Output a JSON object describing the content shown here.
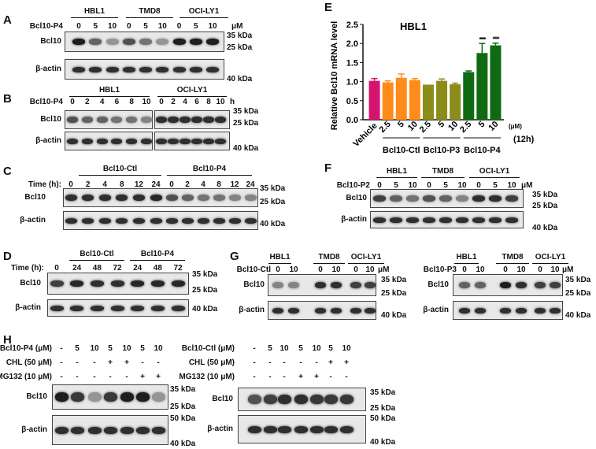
{
  "panels": {
    "A": {
      "label": "A",
      "groups": [
        "HBL1",
        "TMD8",
        "OCI-LY1"
      ],
      "unit": "μM",
      "treat": "Bcl10-P4",
      "lanes": [
        "0",
        "5",
        "10",
        "0",
        "5",
        "10",
        "0",
        "5",
        "10"
      ],
      "rows": [
        "Bcl10",
        "β-actin"
      ],
      "markers": [
        "35 kDa",
        "25 kDa",
        "40 kDa"
      ],
      "bcl10_intensity": [
        1,
        0.6,
        0.3,
        0.7,
        0.5,
        0.3,
        1,
        1,
        1
      ]
    },
    "B": {
      "label": "B",
      "groups": [
        "HBL1",
        "OCI-LY1"
      ],
      "unit": "h",
      "treat": "Bcl10-P4",
      "lanes": [
        "0",
        "2",
        "4",
        "6",
        "8",
        "10",
        "0",
        "2",
        "4",
        "6",
        "8",
        "10"
      ],
      "rows": [
        "Bcl10",
        "β-actin"
      ],
      "markers": [
        "35 kDa",
        "25 kDa",
        "40 kDa"
      ],
      "bcl10_intensity": [
        0.7,
        0.6,
        0.6,
        0.5,
        0.5,
        0.4,
        0.9,
        0.9,
        0.9,
        0.9,
        0.9,
        0.9
      ]
    },
    "C": {
      "label": "C",
      "groups": [
        "Bcl10-Ctl",
        "Bcl10-P4"
      ],
      "treat": "Time (h):",
      "lanes": [
        "0",
        "2",
        "4",
        "8",
        "12",
        "24",
        "0",
        "2",
        "4",
        "8",
        "12",
        "24"
      ],
      "rows": [
        "Bcl10",
        "β-actin"
      ],
      "markers": [
        "35 kDa",
        "25 kDa",
        "40 kDa"
      ],
      "bcl10_intensity": [
        0.9,
        0.9,
        0.9,
        0.9,
        0.9,
        0.95,
        0.7,
        0.6,
        0.5,
        0.5,
        0.4,
        0.4
      ]
    },
    "D": {
      "label": "D",
      "groups": [
        "Bcl10-Ctl",
        "Bcl10-P4"
      ],
      "treat": "Time (h):",
      "lanes": [
        "0",
        "24",
        "48",
        "72",
        "24",
        "48",
        "72"
      ],
      "rows": [
        "Bcl10",
        "β-actin"
      ],
      "markers": [
        "35 kDa",
        "25 kDa",
        "40 kDa"
      ],
      "bcl10_intensity": [
        0.8,
        0.95,
        0.9,
        0.9,
        0.95,
        0.95,
        0.95
      ]
    },
    "E": {
      "label": "E"
    },
    "F": {
      "label": "F",
      "groups": [
        "HBL1",
        "TMD8",
        "OCI-LY1"
      ],
      "unit": "μM",
      "treat": "Bcl10-P2",
      "lanes": [
        "0",
        "5",
        "10",
        "0",
        "5",
        "10",
        "0",
        "5",
        "10"
      ],
      "rows": [
        "Bcl10",
        "β-actin"
      ],
      "markers": [
        "35 kDa",
        "25 kDa",
        "40 kDa"
      ],
      "bcl10_intensity": [
        0.8,
        0.6,
        0.5,
        0.7,
        0.6,
        0.4,
        0.9,
        0.9,
        0.8
      ]
    },
    "G": {
      "label": "G",
      "left": {
        "groups": [
          "HBL1",
          "TMD8",
          "OCI-LY1"
        ],
        "unit": "μM",
        "treat": "Bcl10-Ctl",
        "lanes": [
          "0",
          "10",
          "0",
          "10",
          "0",
          "10"
        ],
        "rows": [
          "Bcl10",
          "β-actin"
        ],
        "markers": [
          "35 kDa",
          "25 kDa",
          "40 kDa"
        ],
        "bcl10_intensity": [
          0.4,
          0.4,
          0.9,
          0.9,
          0.8,
          0.8
        ]
      },
      "right": {
        "groups": [
          "HBL1",
          "TMD8",
          "OCI-LY1"
        ],
        "unit": "μM",
        "treat": "Bcl10-P3",
        "lanes": [
          "0",
          "10",
          "0",
          "10",
          "0",
          "10"
        ],
        "rows": [
          "Bcl10",
          "β-actin"
        ],
        "markers": [
          "35 kDa",
          "25 kDa",
          "40 kDa"
        ],
        "bcl10_intensity": [
          0.6,
          0.6,
          1,
          0.9,
          0.8,
          0.8
        ]
      }
    },
    "H": {
      "label": "H",
      "left": {
        "conditions": [
          {
            "name": "Bcl10-P4 (μM)",
            "values": [
              "-",
              "5",
              "10",
              "5",
              "10",
              "5",
              "10"
            ]
          },
          {
            "name": "CHL (50 μM)",
            "values": [
              "-",
              "-",
              "-",
              "+",
              "+",
              "-",
              "-"
            ]
          },
          {
            "name": "MG132 (10 μM)",
            "values": [
              "-",
              "-",
              "-",
              "-",
              "-",
              "+",
              "+"
            ]
          }
        ],
        "rows": [
          "Bcl10",
          "β-actin"
        ],
        "markers": [
          "35 kDa",
          "25 kDa",
          "50 kDa",
          "40 kDa"
        ],
        "bcl10_intensity": [
          1,
          0.85,
          0.3,
          0.85,
          1,
          1,
          0.3
        ]
      },
      "right": {
        "conditions": [
          {
            "name": "Bcl10-Ctl (μM)",
            "values": [
              "-",
              "5",
              "10",
              "5",
              "10",
              "5",
              "10"
            ]
          },
          {
            "name": "CHL (50 μM)",
            "values": [
              "-",
              "-",
              "-",
              "-",
              "-",
              "+",
              "+"
            ]
          },
          {
            "name": "MG132 (10 μM)",
            "values": [
              "-",
              "-",
              "-",
              "+",
              "+",
              "-",
              "-"
            ]
          }
        ],
        "rows": [
          "Bcl10",
          "β-actin"
        ],
        "markers": [
          "35 kDa",
          "25 kDa",
          "50 kDa",
          "40 kDa"
        ],
        "bcl10_intensity": [
          0.7,
          0.8,
          0.9,
          0.9,
          0.85,
          0.85,
          0.85
        ]
      }
    }
  },
  "chart_data": {
    "type": "bar",
    "title": "HBL1",
    "ylabel": "Relative Bcl10 mRNA level",
    "ylim": [
      0,
      2.5
    ],
    "yticks": [
      "0.0",
      "0.5",
      "1.0",
      "1.5",
      "2.0",
      "2.5"
    ],
    "categories": [
      "Vehicle",
      "2.5",
      "5",
      "10",
      "2.5",
      "5",
      "10",
      "2.5",
      "5",
      "10"
    ],
    "values": [
      1.02,
      0.98,
      1.1,
      1.04,
      0.92,
      1.02,
      0.93,
      1.25,
      1.75,
      1.95
    ],
    "errors": [
      0.06,
      0.04,
      0.1,
      0.04,
      0.0,
      0.05,
      0.03,
      0.03,
      0.25,
      0.06
    ],
    "annotations": [
      "",
      "",
      "",
      "",
      "",
      "",
      "",
      "",
      "****",
      "****"
    ],
    "groups": [
      "Bcl10-Ctl",
      "Bcl10-P3",
      "Bcl10-P4"
    ],
    "unit": "(μM)",
    "time": "(12h)",
    "colors": [
      "#d6136f",
      "#ff8c1a",
      "#ff8c1a",
      "#ff8c1a",
      "#8c8c1a",
      "#8c8c1a",
      "#8c8c1a",
      "#0f6a12",
      "#0f6a12",
      "#0f6a12"
    ]
  }
}
